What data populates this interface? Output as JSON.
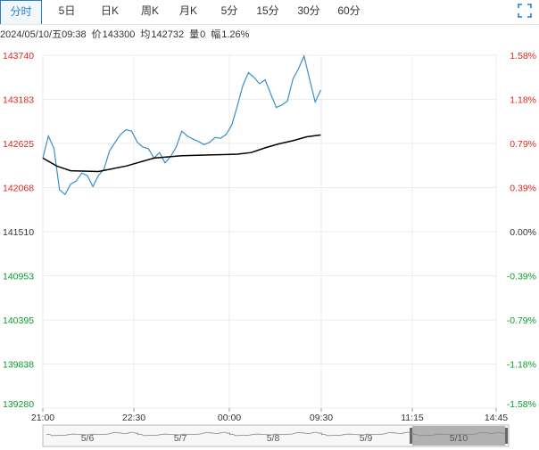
{
  "tabs": [
    {
      "label": "分时",
      "active": true
    },
    {
      "label": "5日",
      "active": false
    },
    {
      "label": "日K",
      "active": false
    },
    {
      "label": "周K",
      "active": false
    },
    {
      "label": "月K",
      "active": false
    },
    {
      "label": "5分",
      "active": false
    },
    {
      "label": "15分",
      "active": false
    },
    {
      "label": "30分",
      "active": false
    },
    {
      "label": "60分",
      "active": false
    }
  ],
  "info": {
    "datetime": "2024/05/10/五09:38",
    "price_label": "价",
    "price": "143300",
    "avg_label": "均",
    "avg": "142732",
    "vol_label": "量",
    "vol": "0",
    "chg_label": "幅",
    "chg": "1.26%"
  },
  "colors": {
    "up": "#e0251b",
    "down": "#0a9e28",
    "neutral": "#333333",
    "price_line": "#3a8fc8",
    "avg_line": "#000000",
    "grid": "#ebebeb",
    "active_tab": "#2a7fc4"
  },
  "chart_data": {
    "type": "line",
    "y_ticks": [
      "143740",
      "143183",
      "142625",
      "142068",
      "141510",
      "140953",
      "140395",
      "139838",
      "139280"
    ],
    "pct_ticks": [
      "1.58%",
      "1.18%",
      "0.79%",
      "0.39%",
      "0.00%",
      "-0.39%",
      "-0.79%",
      "-1.18%",
      "-1.58%"
    ],
    "ylim": [
      139280,
      143740
    ],
    "x_ticks": [
      "21:00",
      "22:30",
      "00:00",
      "09:30",
      "11:15",
      "14:45"
    ],
    "series": [
      {
        "name": "价",
        "color": "#3a8fc8",
        "t": [
          0,
          0.02,
          0.04,
          0.06,
          0.08,
          0.1,
          0.12,
          0.14,
          0.16,
          0.18,
          0.2,
          0.22,
          0.24,
          0.26,
          0.28,
          0.3,
          0.32,
          0.34,
          0.36,
          0.38,
          0.4,
          0.42,
          0.44,
          0.46,
          0.48,
          0.5,
          0.52,
          0.54,
          0.56,
          0.58,
          0.6,
          0.62,
          0.64,
          0.66,
          0.68,
          0.7,
          0.72,
          0.74,
          0.76,
          0.78,
          0.8,
          0.82,
          0.84,
          0.86,
          0.88,
          0.9,
          0.92,
          0.94,
          0.96,
          0.98,
          1.0
        ],
        "values": [
          142440,
          142720,
          142560,
          142040,
          141980,
          142110,
          142150,
          142250,
          142220,
          142080,
          142220,
          142300,
          142530,
          142640,
          142740,
          142800,
          142780,
          142640,
          142580,
          142560,
          142440,
          142510,
          142380,
          142460,
          142580,
          142780,
          142720,
          142680,
          142650,
          142610,
          142640,
          142700,
          142690,
          142740,
          142860,
          143100,
          143360,
          143520,
          143460,
          143380,
          143430,
          143250,
          143080,
          143110,
          143160,
          143440,
          143570,
          143730,
          143440,
          143150,
          143300
        ]
      },
      {
        "name": "均",
        "color": "#000000",
        "t": [
          0,
          0.05,
          0.1,
          0.2,
          0.3,
          0.4,
          0.5,
          0.6,
          0.7,
          0.75,
          0.8,
          0.85,
          0.9,
          0.95,
          1.0
        ],
        "values": [
          142440,
          142340,
          142280,
          142270,
          142340,
          142440,
          142470,
          142480,
          142490,
          142510,
          142570,
          142620,
          142660,
          142710,
          142732
        ]
      }
    ],
    "navigator": {
      "labels": [
        "5/6",
        "5/7",
        "5/8",
        "5/9",
        "5/10"
      ]
    }
  }
}
